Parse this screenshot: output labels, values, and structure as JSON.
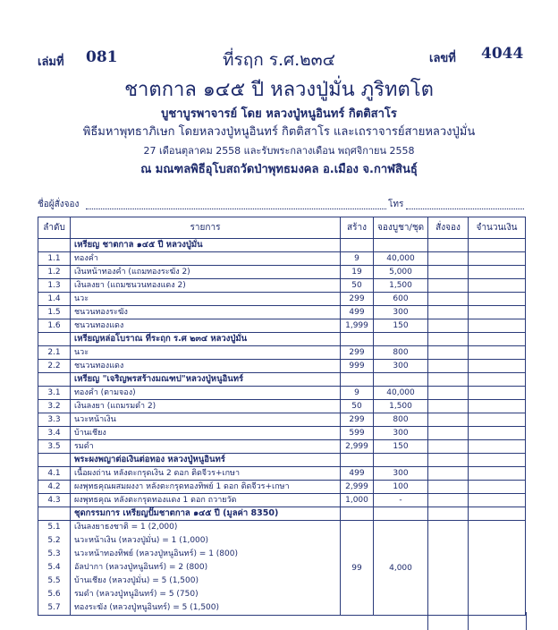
{
  "header": {
    "book_label": "เล่มที่",
    "book_no": "081",
    "number_label": "เลขที่",
    "number": "4044",
    "title_line1": "ที่รฤก ร.ศ.๒๓๔",
    "title_line2": "ชาตกาล ๑๔๕ ปี หลวงปู่มั่น ภูริทตโต",
    "line3": "บูชาบูรพาจารย์ โดย หลวงปู่หนูอินทร์ กิตติสาโร",
    "line4": "พิธีมหาพุทธาภิเษก โดยหลวงปู่หนูอินทร์ กิตติสาโร และเถราจารย์สายหลวงปู่มั่น",
    "line5": "27 เดือนตุลาคม 2558 และรับพระกลางเดือน พฤศจิกายน 2558",
    "line6": "ณ มณฑลพิธีอุโบสถวัดป่าพุทธมงคล อ.เมือง จ.กาฬสินธุ์"
  },
  "form": {
    "orderer_label": "ชื่อผู้สั่งจอง",
    "phone_label": "โทร"
  },
  "table": {
    "columns": [
      "ลำดับ",
      "รายการ",
      "สร้าง",
      "จองบูชา/ชุด",
      "สั่งจอง",
      "จำนวนเงิน"
    ],
    "sections": [
      {
        "title": "เหรียญ ชาตกาล ๑๔๕ ปี หลวงปู่มั่น",
        "rows": [
          {
            "no": "1.1",
            "item": "ทองคำ",
            "made": "9",
            "price": "40,000"
          },
          {
            "no": "1.2",
            "item": "เงินหน้าทองคำ (แถมทองระฆัง 2)",
            "made": "19",
            "price": "5,000"
          },
          {
            "no": "1.3",
            "item": "เงินลงยา (แถมชนวนทองแดง 2)",
            "made": "50",
            "price": "1,500"
          },
          {
            "no": "1.4",
            "item": "นวะ",
            "made": "299",
            "price": "600"
          },
          {
            "no": "1.5",
            "item": "ชนวนทองระฆัง",
            "made": "499",
            "price": "300"
          },
          {
            "no": "1.6",
            "item": "ชนวนทองแดง",
            "made": "1,999",
            "price": "150"
          }
        ]
      },
      {
        "title": "เหรียญหล่อโบราณ ที่ระฤก ร.ศ ๒๓๔ หลวงปู่มั่น",
        "rows": [
          {
            "no": "2.1",
            "item": "นวะ",
            "made": "299",
            "price": "800"
          },
          {
            "no": "2.2",
            "item": "ชนวนทองแดง",
            "made": "999",
            "price": "300"
          }
        ]
      },
      {
        "title": "เหรียญ \"เจริญพรสร้างมณฑป\"หลวงปู่หนูอินทร์",
        "rows": [
          {
            "no": "3.1",
            "item": "ทองคำ (ตามจอง)",
            "made": "9",
            "price": "40,000"
          },
          {
            "no": "3.2",
            "item": "เงินลงยา (แถมรมดำ 2)",
            "made": "50",
            "price": "1,500"
          },
          {
            "no": "3.3",
            "item": "นวะหน้าเงิน",
            "made": "299",
            "price": "800"
          },
          {
            "no": "3.4",
            "item": "บ้านเชียง",
            "made": "599",
            "price": "300"
          },
          {
            "no": "3.5",
            "item": "รมดำ",
            "made": "2,999",
            "price": "150"
          }
        ]
      },
      {
        "title": "พระผงพญาต่อเงินต่อทอง หลวงปู่หนูอินทร์",
        "rows": [
          {
            "no": "4.1",
            "item": "เนื้อผงถ่าน หลังตะกรุดเงิน 2 ดอก ติดจีวร+เกษา",
            "made": "499",
            "price": "300"
          },
          {
            "no": "4.2",
            "item": "ผงพุทธคุณผสมผงงา หลังตะกรุดทองทิพย์ 1 ดอก ติดจีวร+เกษา",
            "made": "2,999",
            "price": "100"
          },
          {
            "no": "4.3",
            "item": "ผงพุทธคุณ หลังตะกรุดทองแดง 1 ดอก ถวายวัด",
            "made": "1,000",
            "price": "-"
          }
        ]
      }
    ],
    "set_section": {
      "title": "ชุดกรรมการ เหรียญปั๊มชาตกาล ๑๔๕ ปี (มูลค่า 8350)",
      "made": "99",
      "price": "4,000",
      "items": [
        {
          "no": "5.1",
          "item": "เงินลงยาธงชาติ = 1 (2,000)"
        },
        {
          "no": "5.2",
          "item": "นวะหน้าเงิน (หลวงปู่มั่น) = 1 (1,000)"
        },
        {
          "no": "5.3",
          "item": "นวะหน้าทองทิพย์ (หลวงปู่หนูอินทร์) = 1 (800)"
        },
        {
          "no": "5.4",
          "item": "อัลปากา (หลวงปู่หนูอินทร์) = 2 (800)"
        },
        {
          "no": "5.5",
          "item": "บ้านเชียง (หลวงปู่มั่น) = 5 (1,500)"
        },
        {
          "no": "5.6",
          "item": "รมดำ (หลวงปู่หนูอินทร์) = 5 (750)"
        },
        {
          "no": "5.7",
          "item": "ทองระฆัง (หลวงปู่หนูอินทร์) = 5 (1,500)"
        }
      ]
    }
  }
}
